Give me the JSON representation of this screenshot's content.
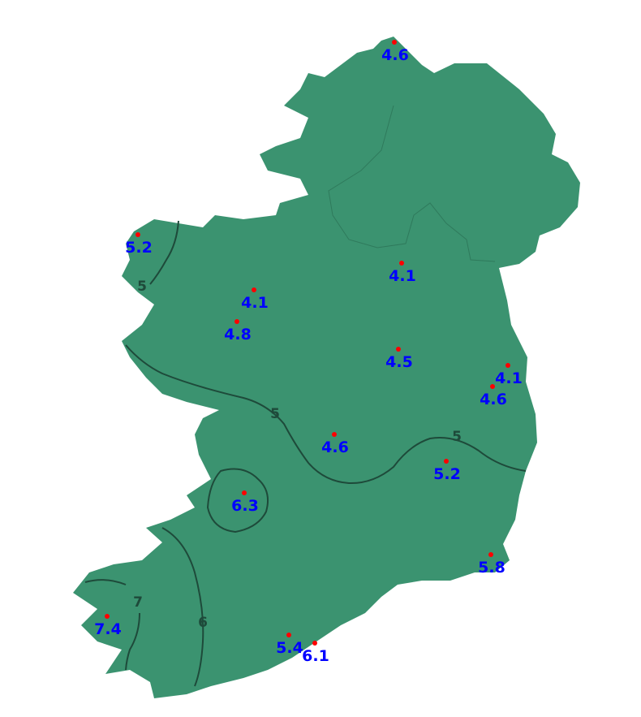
{
  "map": {
    "land_color": "#3b9370",
    "contour_color": "#1e4a3a",
    "station_marker_color": "#ff0000",
    "station_label_color": "#0000ff",
    "contour_labels": [
      "5",
      "5",
      "5",
      "6",
      "7"
    ],
    "stations": [
      {
        "value": "4.6"
      },
      {
        "value": "5.2"
      },
      {
        "value": "4.1"
      },
      {
        "value": "4.8"
      },
      {
        "value": "4.1"
      },
      {
        "value": "4.5"
      },
      {
        "value": "4.1"
      },
      {
        "value": "4.6"
      },
      {
        "value": "4.6"
      },
      {
        "value": "5.2"
      },
      {
        "value": "6.3"
      },
      {
        "value": "5.8"
      },
      {
        "value": "7.4"
      },
      {
        "value": "5.4"
      },
      {
        "value": "6.1"
      }
    ]
  }
}
